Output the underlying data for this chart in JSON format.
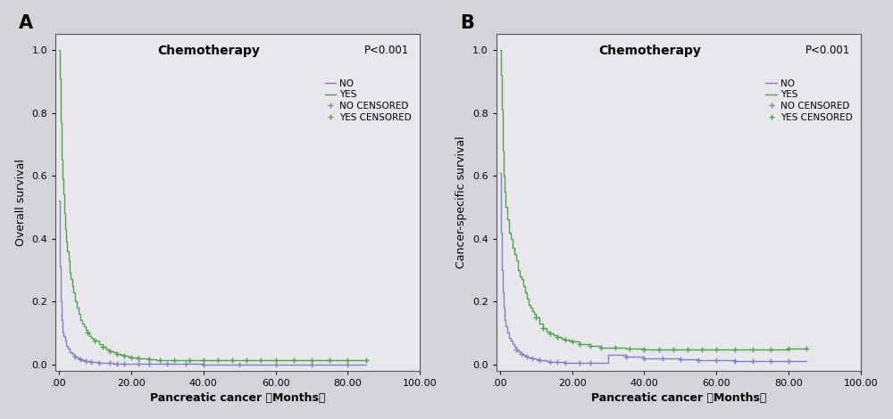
{
  "panel_A": {
    "title": "Chemotherapy",
    "pvalue": "P<0.001",
    "xlabel": "Pancreatic cancer （Months）",
    "ylabel": "Overall survival",
    "label": "A",
    "xlim": [
      -1,
      100
    ],
    "ylim": [
      -0.02,
      1.05
    ],
    "xticks": [
      0,
      20,
      40,
      60,
      80,
      100
    ],
    "xtick_labels": [
      ".00",
      "20.00",
      "40.00",
      "60.00",
      "80.00",
      "100.00"
    ],
    "yticks": [
      0.0,
      0.2,
      0.4,
      0.6,
      0.8,
      1.0
    ],
    "no_color": "#8080c0",
    "yes_color": "#50a050",
    "no_curve_x": [
      0,
      0.2,
      0.5,
      0.8,
      1.0,
      1.3,
      1.6,
      2.0,
      2.5,
      3.0,
      3.5,
      4.0,
      4.5,
      5.0,
      5.5,
      6.0,
      6.5,
      7.0,
      7.5,
      8.0,
      9.0,
      10.0,
      11.0,
      12.0,
      13.0,
      14.0,
      15.0,
      16.0,
      18.0,
      20.0,
      22.0,
      25.0,
      30.0,
      35.0,
      40.0,
      45.0,
      50.0,
      55.0,
      60.0,
      65.0,
      70.0,
      75.0,
      80.0,
      85.0
    ],
    "no_curve_y": [
      0.52,
      0.31,
      0.2,
      0.14,
      0.1,
      0.09,
      0.075,
      0.06,
      0.05,
      0.04,
      0.035,
      0.03,
      0.025,
      0.022,
      0.018,
      0.015,
      0.013,
      0.012,
      0.011,
      0.01,
      0.008,
      0.007,
      0.006,
      0.005,
      0.004,
      0.004,
      0.003,
      0.003,
      0.002,
      0.002,
      0.001,
      0.001,
      0.001,
      0.001,
      0.0,
      0.0,
      0.0,
      0.0,
      0.0,
      0.0,
      0.0,
      0.0,
      0.0,
      0.0
    ],
    "yes_curve_x": [
      0,
      0.2,
      0.5,
      0.8,
      1.0,
      1.2,
      1.5,
      1.8,
      2.0,
      2.3,
      2.6,
      3.0,
      3.3,
      3.7,
      4.0,
      4.5,
      5.0,
      5.5,
      6.0,
      6.5,
      7.0,
      7.5,
      8.0,
      8.5,
      9.0,
      9.5,
      10.0,
      11.0,
      12.0,
      13.0,
      14.0,
      15.0,
      16.0,
      17.0,
      18.0,
      19.0,
      20.0,
      22.0,
      25.0,
      27.0,
      30.0,
      35.0,
      40.0,
      45.0,
      50.0,
      55.0,
      60.0,
      65.0,
      70.0,
      75.0,
      80.0,
      85.0
    ],
    "yes_curve_y": [
      1.0,
      0.91,
      0.77,
      0.65,
      0.59,
      0.54,
      0.48,
      0.43,
      0.39,
      0.36,
      0.33,
      0.29,
      0.27,
      0.25,
      0.23,
      0.2,
      0.18,
      0.16,
      0.14,
      0.13,
      0.12,
      0.11,
      0.1,
      0.09,
      0.085,
      0.08,
      0.075,
      0.065,
      0.055,
      0.048,
      0.042,
      0.038,
      0.034,
      0.03,
      0.028,
      0.025,
      0.022,
      0.018,
      0.015,
      0.014,
      0.013,
      0.012,
      0.012,
      0.012,
      0.012,
      0.012,
      0.012,
      0.012,
      0.012,
      0.012,
      0.013,
      0.013
    ],
    "no_censor_x": [
      4.5,
      6.0,
      7.5,
      9.0,
      11.0,
      14.0,
      16.0,
      18.0,
      22.0,
      25.0,
      30.0,
      35.0,
      40.0,
      50.0,
      60.0,
      70.0,
      80.0
    ],
    "no_censor_y": [
      0.025,
      0.015,
      0.011,
      0.008,
      0.006,
      0.004,
      0.003,
      0.002,
      0.001,
      0.001,
      0.001,
      0.001,
      0.0,
      0.0,
      0.0,
      0.0,
      0.0
    ],
    "yes_censor_x": [
      8.0,
      10.0,
      12.0,
      14.0,
      16.0,
      18.0,
      20.0,
      22.0,
      25.0,
      28.0,
      32.0,
      36.0,
      40.0,
      44.0,
      48.0,
      52.0,
      56.0,
      60.0,
      65.0,
      70.0,
      75.0,
      80.0,
      85.0
    ],
    "yes_censor_y": [
      0.1,
      0.075,
      0.055,
      0.042,
      0.034,
      0.028,
      0.022,
      0.018,
      0.015,
      0.014,
      0.013,
      0.012,
      0.012,
      0.012,
      0.012,
      0.012,
      0.012,
      0.012,
      0.012,
      0.012,
      0.012,
      0.013,
      0.013
    ]
  },
  "panel_B": {
    "title": "Chemotherapy",
    "pvalue": "P<0.001",
    "xlabel": "Pancreatic cancer （Months）",
    "ylabel": "Cancer-specific survival",
    "label": "B",
    "xlim": [
      -1,
      100
    ],
    "ylim": [
      -0.02,
      1.05
    ],
    "xticks": [
      0,
      20,
      40,
      60,
      80,
      100
    ],
    "xtick_labels": [
      ".00",
      "20.00",
      "40.00",
      "60.00",
      "80.00",
      "100.00"
    ],
    "yticks": [
      0.0,
      0.2,
      0.4,
      0.6,
      0.8,
      1.0
    ],
    "no_color": "#8080c0",
    "yes_color": "#50a050",
    "no_curve_x": [
      0,
      0.2,
      0.5,
      0.8,
      1.0,
      1.3,
      1.6,
      2.0,
      2.5,
      3.0,
      3.5,
      4.0,
      4.5,
      5.0,
      5.5,
      6.0,
      6.5,
      7.0,
      7.5,
      8.0,
      9.0,
      10.0,
      11.0,
      12.0,
      13.0,
      14.0,
      15.0,
      16.0,
      18.0,
      20.0,
      22.0,
      25.0,
      30.0,
      35.0,
      40.0,
      45.0,
      50.0,
      55.0,
      60.0,
      65.0,
      70.0,
      75.0,
      80.0,
      85.0
    ],
    "no_curve_y": [
      0.61,
      0.42,
      0.3,
      0.23,
      0.18,
      0.14,
      0.12,
      0.1,
      0.085,
      0.075,
      0.065,
      0.055,
      0.048,
      0.042,
      0.038,
      0.034,
      0.03,
      0.027,
      0.024,
      0.022,
      0.018,
      0.015,
      0.013,
      0.012,
      0.01,
      0.009,
      0.008,
      0.007,
      0.006,
      0.005,
      0.004,
      0.004,
      0.03,
      0.025,
      0.02,
      0.018,
      0.015,
      0.013,
      0.012,
      0.01,
      0.01,
      0.01,
      0.01,
      0.01
    ],
    "yes_curve_x": [
      0,
      0.2,
      0.5,
      0.8,
      1.0,
      1.3,
      1.6,
      2.0,
      2.5,
      3.0,
      3.5,
      4.0,
      4.5,
      5.0,
      5.5,
      6.0,
      6.5,
      7.0,
      7.5,
      8.0,
      8.5,
      9.0,
      9.5,
      10.0,
      11.0,
      12.0,
      13.0,
      14.0,
      15.0,
      16.0,
      17.0,
      18.0,
      19.0,
      20.0,
      22.0,
      25.0,
      28.0,
      30.0,
      35.0,
      40.0,
      45.0,
      50.0,
      55.0,
      60.0,
      65.0,
      70.0,
      75.0,
      80.0,
      85.0
    ],
    "yes_curve_y": [
      1.0,
      0.92,
      0.81,
      0.68,
      0.6,
      0.55,
      0.5,
      0.46,
      0.42,
      0.4,
      0.37,
      0.35,
      0.33,
      0.3,
      0.28,
      0.27,
      0.25,
      0.23,
      0.21,
      0.19,
      0.18,
      0.17,
      0.16,
      0.15,
      0.13,
      0.115,
      0.105,
      0.098,
      0.092,
      0.088,
      0.082,
      0.078,
      0.075,
      0.072,
      0.065,
      0.058,
      0.054,
      0.052,
      0.05,
      0.048,
      0.048,
      0.048,
      0.048,
      0.048,
      0.048,
      0.048,
      0.048,
      0.05,
      0.05
    ],
    "no_censor_x": [
      4.5,
      6.0,
      7.5,
      9.0,
      11.0,
      14.0,
      16.0,
      18.0,
      22.0,
      25.0,
      35.0,
      40.0,
      45.0,
      50.0,
      55.0,
      60.0,
      65.0,
      70.0,
      75.0,
      80.0
    ],
    "no_censor_y": [
      0.048,
      0.034,
      0.024,
      0.018,
      0.013,
      0.009,
      0.007,
      0.006,
      0.004,
      0.004,
      0.025,
      0.02,
      0.018,
      0.015,
      0.013,
      0.012,
      0.01,
      0.01,
      0.01,
      0.01
    ],
    "yes_censor_x": [
      10.0,
      12.0,
      14.0,
      16.0,
      18.0,
      20.0,
      22.0,
      25.0,
      28.0,
      32.0,
      36.0,
      40.0,
      44.0,
      48.0,
      52.0,
      56.0,
      60.0,
      65.0,
      70.0,
      75.0,
      80.0,
      85.0
    ],
    "yes_censor_y": [
      0.15,
      0.115,
      0.098,
      0.088,
      0.078,
      0.072,
      0.065,
      0.058,
      0.054,
      0.052,
      0.05,
      0.048,
      0.048,
      0.048,
      0.048,
      0.048,
      0.048,
      0.048,
      0.048,
      0.048,
      0.05,
      0.05
    ]
  },
  "plot_bg_color": "#e8e8ec",
  "fig_bg_color": "#d4d4d8",
  "legend_labels": [
    "NO",
    "YES",
    "NO CENSORED",
    "YES CENSORED"
  ]
}
